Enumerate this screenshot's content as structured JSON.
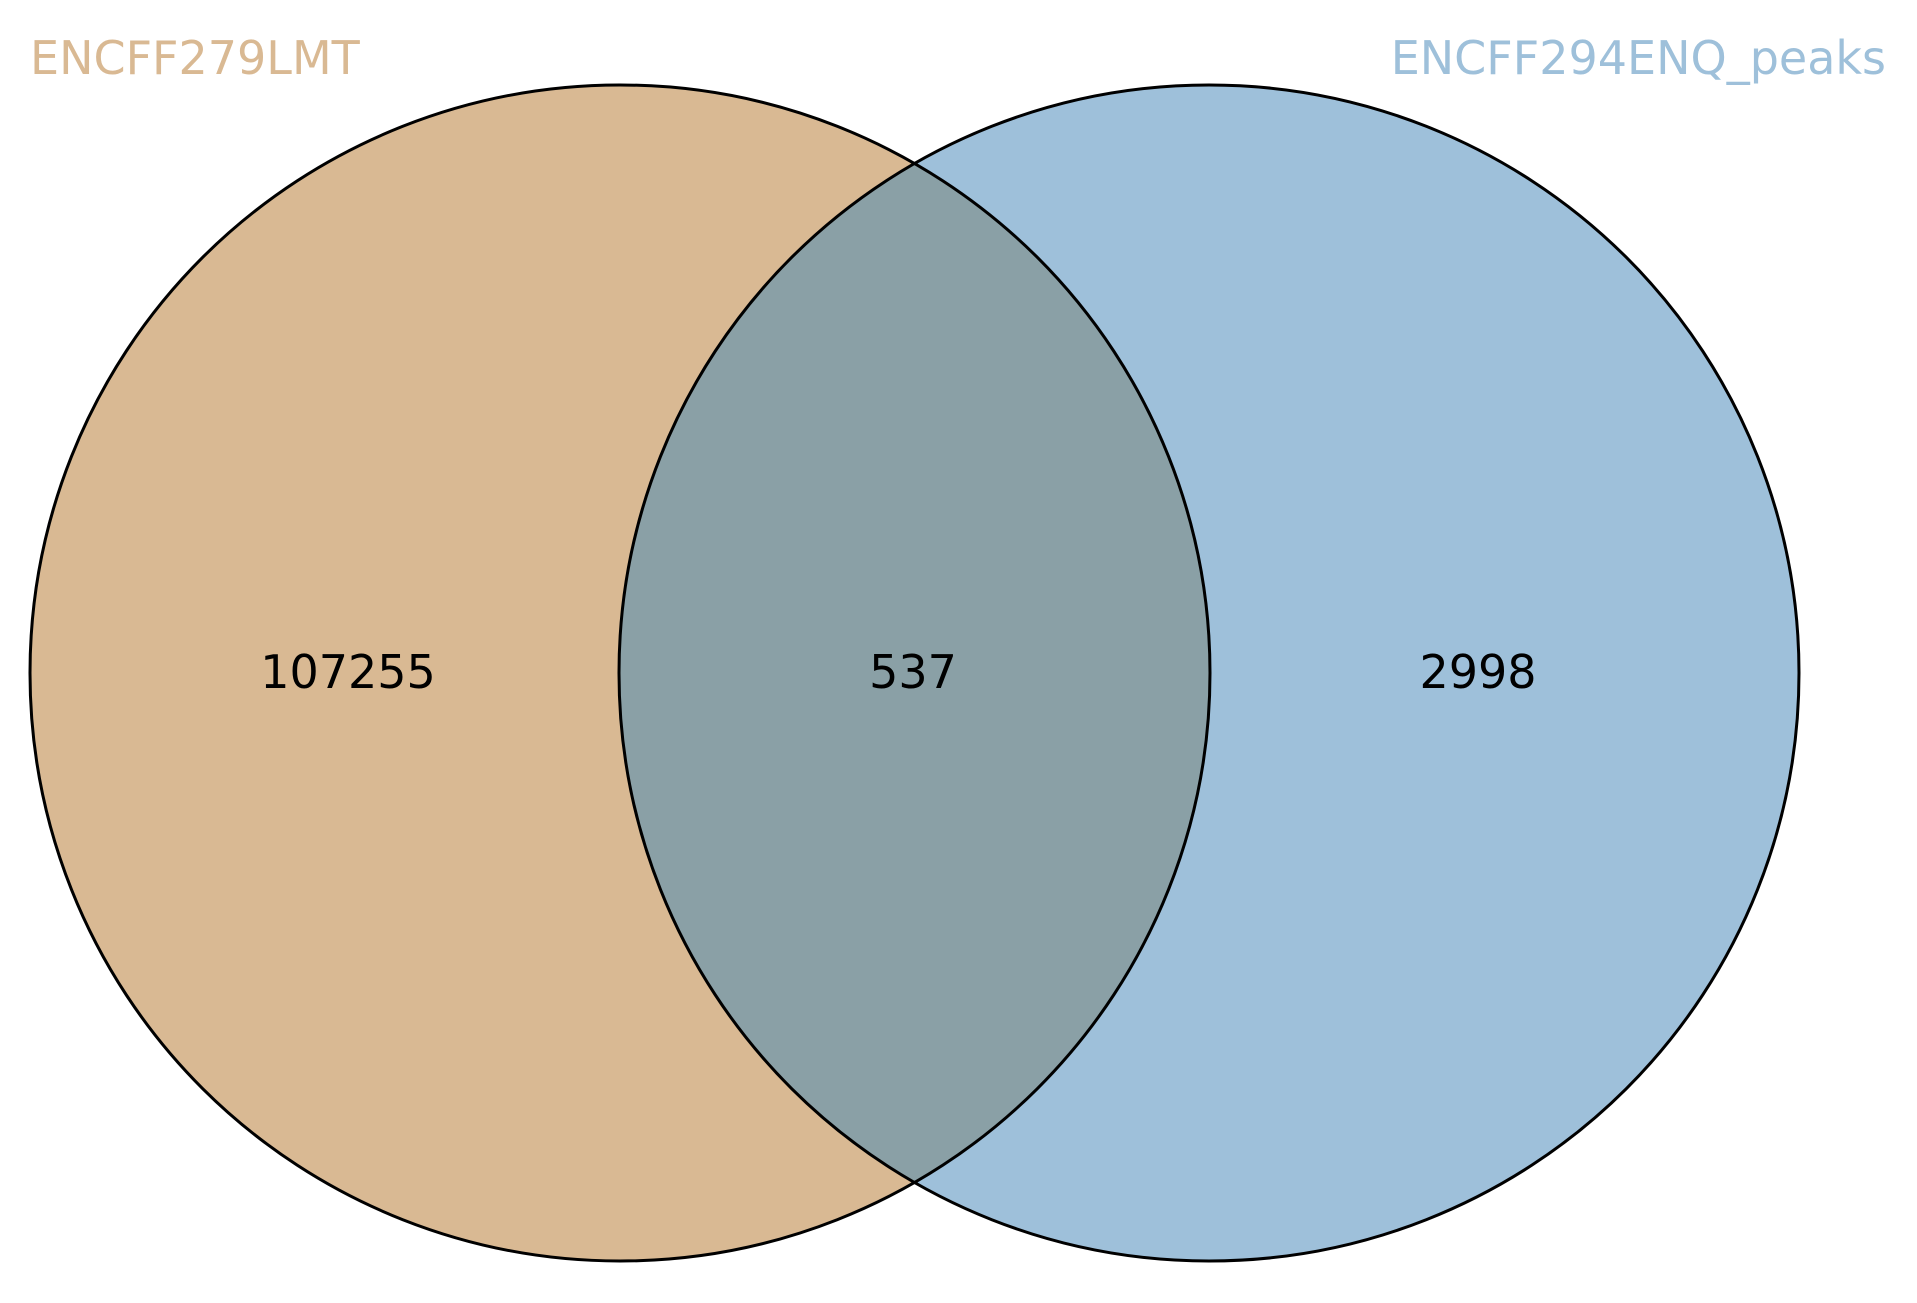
{
  "diagram": {
    "type": "venn2",
    "sets": [
      {
        "name": "ENCFF279LMT",
        "color": "#d9b993"
      },
      {
        "name": "ENCFF294ENQ_peaks",
        "color": "#9ec0da"
      }
    ],
    "overlap_color": "#8aa0a6",
    "outline_color": "#000000",
    "counts": {
      "only_a": "107255",
      "both": "537",
      "only_b": "2998"
    }
  }
}
